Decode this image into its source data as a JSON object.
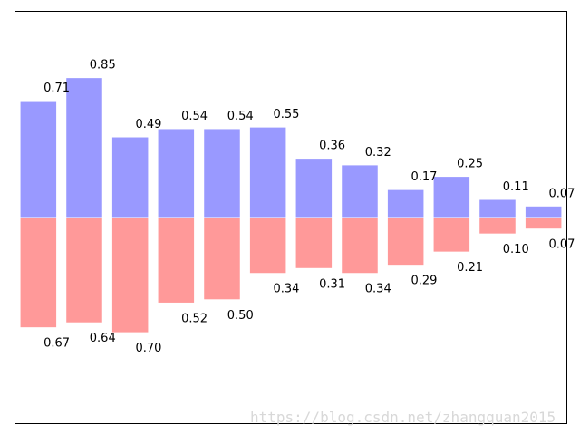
{
  "chart_data": {
    "type": "bar",
    "categories": [
      "",
      "",
      "",
      "",
      "",
      "",
      "",
      "",
      "",
      "",
      "",
      ""
    ],
    "series": [
      {
        "values": [
          0.71,
          0.85,
          0.49,
          0.54,
          0.54,
          0.55,
          0.36,
          0.32,
          0.17,
          0.25,
          0.11,
          0.07
        ],
        "labels": [
          "0.71",
          "0.85",
          "0.49",
          "0.54",
          "0.54",
          "0.55",
          "0.36",
          "0.32",
          "0.17",
          "0.25",
          "0.11",
          "0.07"
        ],
        "color": "#9999ff"
      },
      {
        "values": [
          -0.67,
          -0.64,
          -0.7,
          -0.52,
          -0.5,
          -0.34,
          -0.31,
          -0.34,
          -0.29,
          -0.21,
          -0.1,
          -0.07
        ],
        "labels": [
          "0.67",
          "0.64",
          "0.70",
          "0.52",
          "0.50",
          "0.34",
          "0.31",
          "0.34",
          "0.29",
          "0.21",
          "0.10",
          "0.07"
        ],
        "color": "#ff9999"
      }
    ],
    "ylim": [
      -1.25,
      1.25
    ],
    "xlim": [
      -0.5,
      11.5
    ],
    "bar_edgecolor": "#ffffff",
    "axes_visible": false,
    "grid": false
  },
  "watermark": {
    "text": "https://blog.csdn.net/zhangquan2015"
  }
}
